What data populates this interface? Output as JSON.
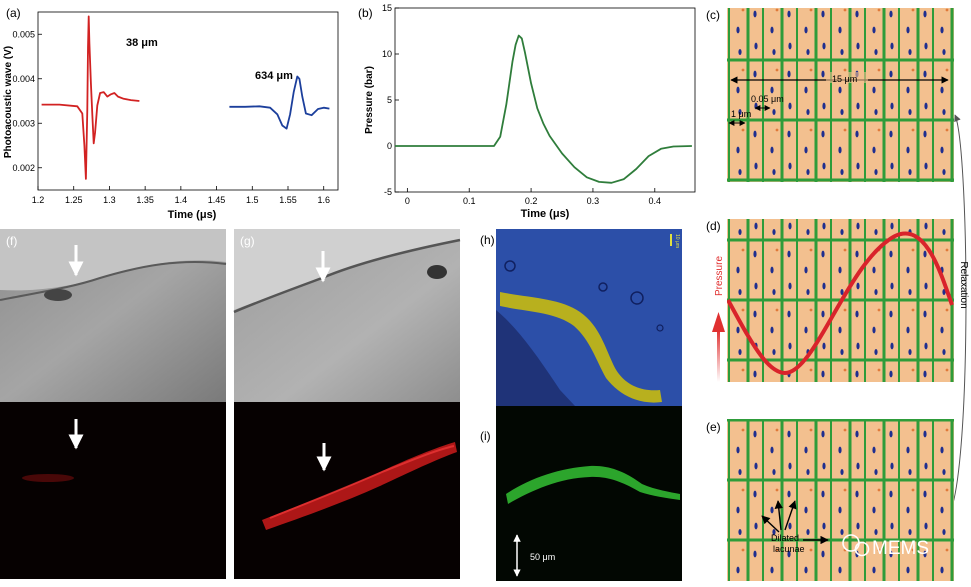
{
  "panel_labels": {
    "a": "(a)",
    "b": "(b)",
    "c": "(c)",
    "d": "(d)",
    "e": "(e)",
    "f": "(f)",
    "g": "(g)",
    "h": "(h)",
    "i": "(i)"
  },
  "chart_data": [
    {
      "panel": "a",
      "type": "line",
      "xlabel": "Time (μs)",
      "ylabel": "Photoacoustic wave (V)",
      "xlim": [
        1.2,
        1.62
      ],
      "ylim": [
        0.0015,
        0.0055
      ],
      "xticks": [
        "1.2",
        "1.25",
        "1.3",
        "1.35",
        "1.4",
        "1.45",
        "1.5",
        "1.55",
        "1.6"
      ],
      "yticks": [
        "0.002",
        "0.003",
        "0.004",
        "0.005"
      ],
      "annotations": [
        "38 μm",
        "634 μm"
      ],
      "series": [
        {
          "name": "38 μm",
          "color": "#d22222",
          "x": [
            1.205,
            1.23,
            1.255,
            1.262,
            1.265,
            1.267,
            1.269,
            1.27,
            1.271,
            1.272,
            1.274,
            1.276,
            1.278,
            1.28,
            1.283,
            1.287,
            1.292,
            1.297,
            1.302,
            1.307,
            1.312,
            1.32,
            1.33,
            1.342
          ],
          "y": [
            0.00342,
            0.00342,
            0.00338,
            0.00322,
            0.0025,
            0.00175,
            0.0033,
            0.0047,
            0.0054,
            0.0048,
            0.0039,
            0.0032,
            0.00255,
            0.0028,
            0.0034,
            0.00368,
            0.0037,
            0.0036,
            0.00365,
            0.00368,
            0.0036,
            0.00355,
            0.00352,
            0.0035
          ]
        },
        {
          "name": "634 μm",
          "color": "#1c3f9c",
          "x": [
            1.468,
            1.49,
            1.51,
            1.525,
            1.535,
            1.542,
            1.548,
            1.553,
            1.558,
            1.563,
            1.566,
            1.57,
            1.575,
            1.583,
            1.592,
            1.6,
            1.608
          ],
          "y": [
            0.00337,
            0.00337,
            0.00338,
            0.00335,
            0.0032,
            0.00295,
            0.00288,
            0.0032,
            0.0037,
            0.00405,
            0.004,
            0.0036,
            0.00322,
            0.00318,
            0.00332,
            0.00335,
            0.00333
          ]
        }
      ]
    },
    {
      "panel": "b",
      "type": "line",
      "xlabel": "Time (μs)",
      "ylabel": "Pressure (bar)",
      "xlim": [
        -0.02,
        0.465
      ],
      "ylim": [
        -5,
        15
      ],
      "xticks": [
        "0",
        "0.1",
        "0.2",
        "0.3",
        "0.4"
      ],
      "yticks": [
        "-5",
        "0",
        "5",
        "10",
        "15"
      ],
      "series": [
        {
          "name": "pressure",
          "color": "#2f7d3b",
          "x": [
            -0.02,
            0.14,
            0.15,
            0.16,
            0.17,
            0.175,
            0.18,
            0.185,
            0.19,
            0.2,
            0.21,
            0.22,
            0.23,
            0.25,
            0.27,
            0.29,
            0.31,
            0.33,
            0.35,
            0.37,
            0.39,
            0.41,
            0.43,
            0.46
          ],
          "y": [
            0,
            0,
            1.0,
            4.5,
            9.2,
            11.0,
            12.0,
            11.7,
            10.2,
            6.8,
            4.1,
            2.4,
            1.1,
            -0.8,
            -2.3,
            -3.4,
            -3.9,
            -4.0,
            -3.6,
            -2.5,
            -1.1,
            -0.3,
            -0.05,
            0
          ]
        }
      ]
    }
  ],
  "panel_c": {
    "measure_total": "15 μm",
    "measure_gap": "0.05 μm",
    "measure_small": "1 μm"
  },
  "panel_d": {
    "pressure_label": "Pressure",
    "relaxation_label": "Relaxation"
  },
  "panel_e": {
    "lacunae_line1": "Dilated",
    "lacunae_line2": "lacunae"
  },
  "micrographs": {
    "scale_h": "10 μm",
    "scale_bar": "50 μm"
  },
  "watermark": {
    "text": "MEMS"
  },
  "colors": {
    "tissue": "#f3c08f",
    "cell_wall": "#2e9c3a",
    "nucleus": "#1f2e8f",
    "red_wave": "#d9232b",
    "arrow_red": "#e03030"
  }
}
